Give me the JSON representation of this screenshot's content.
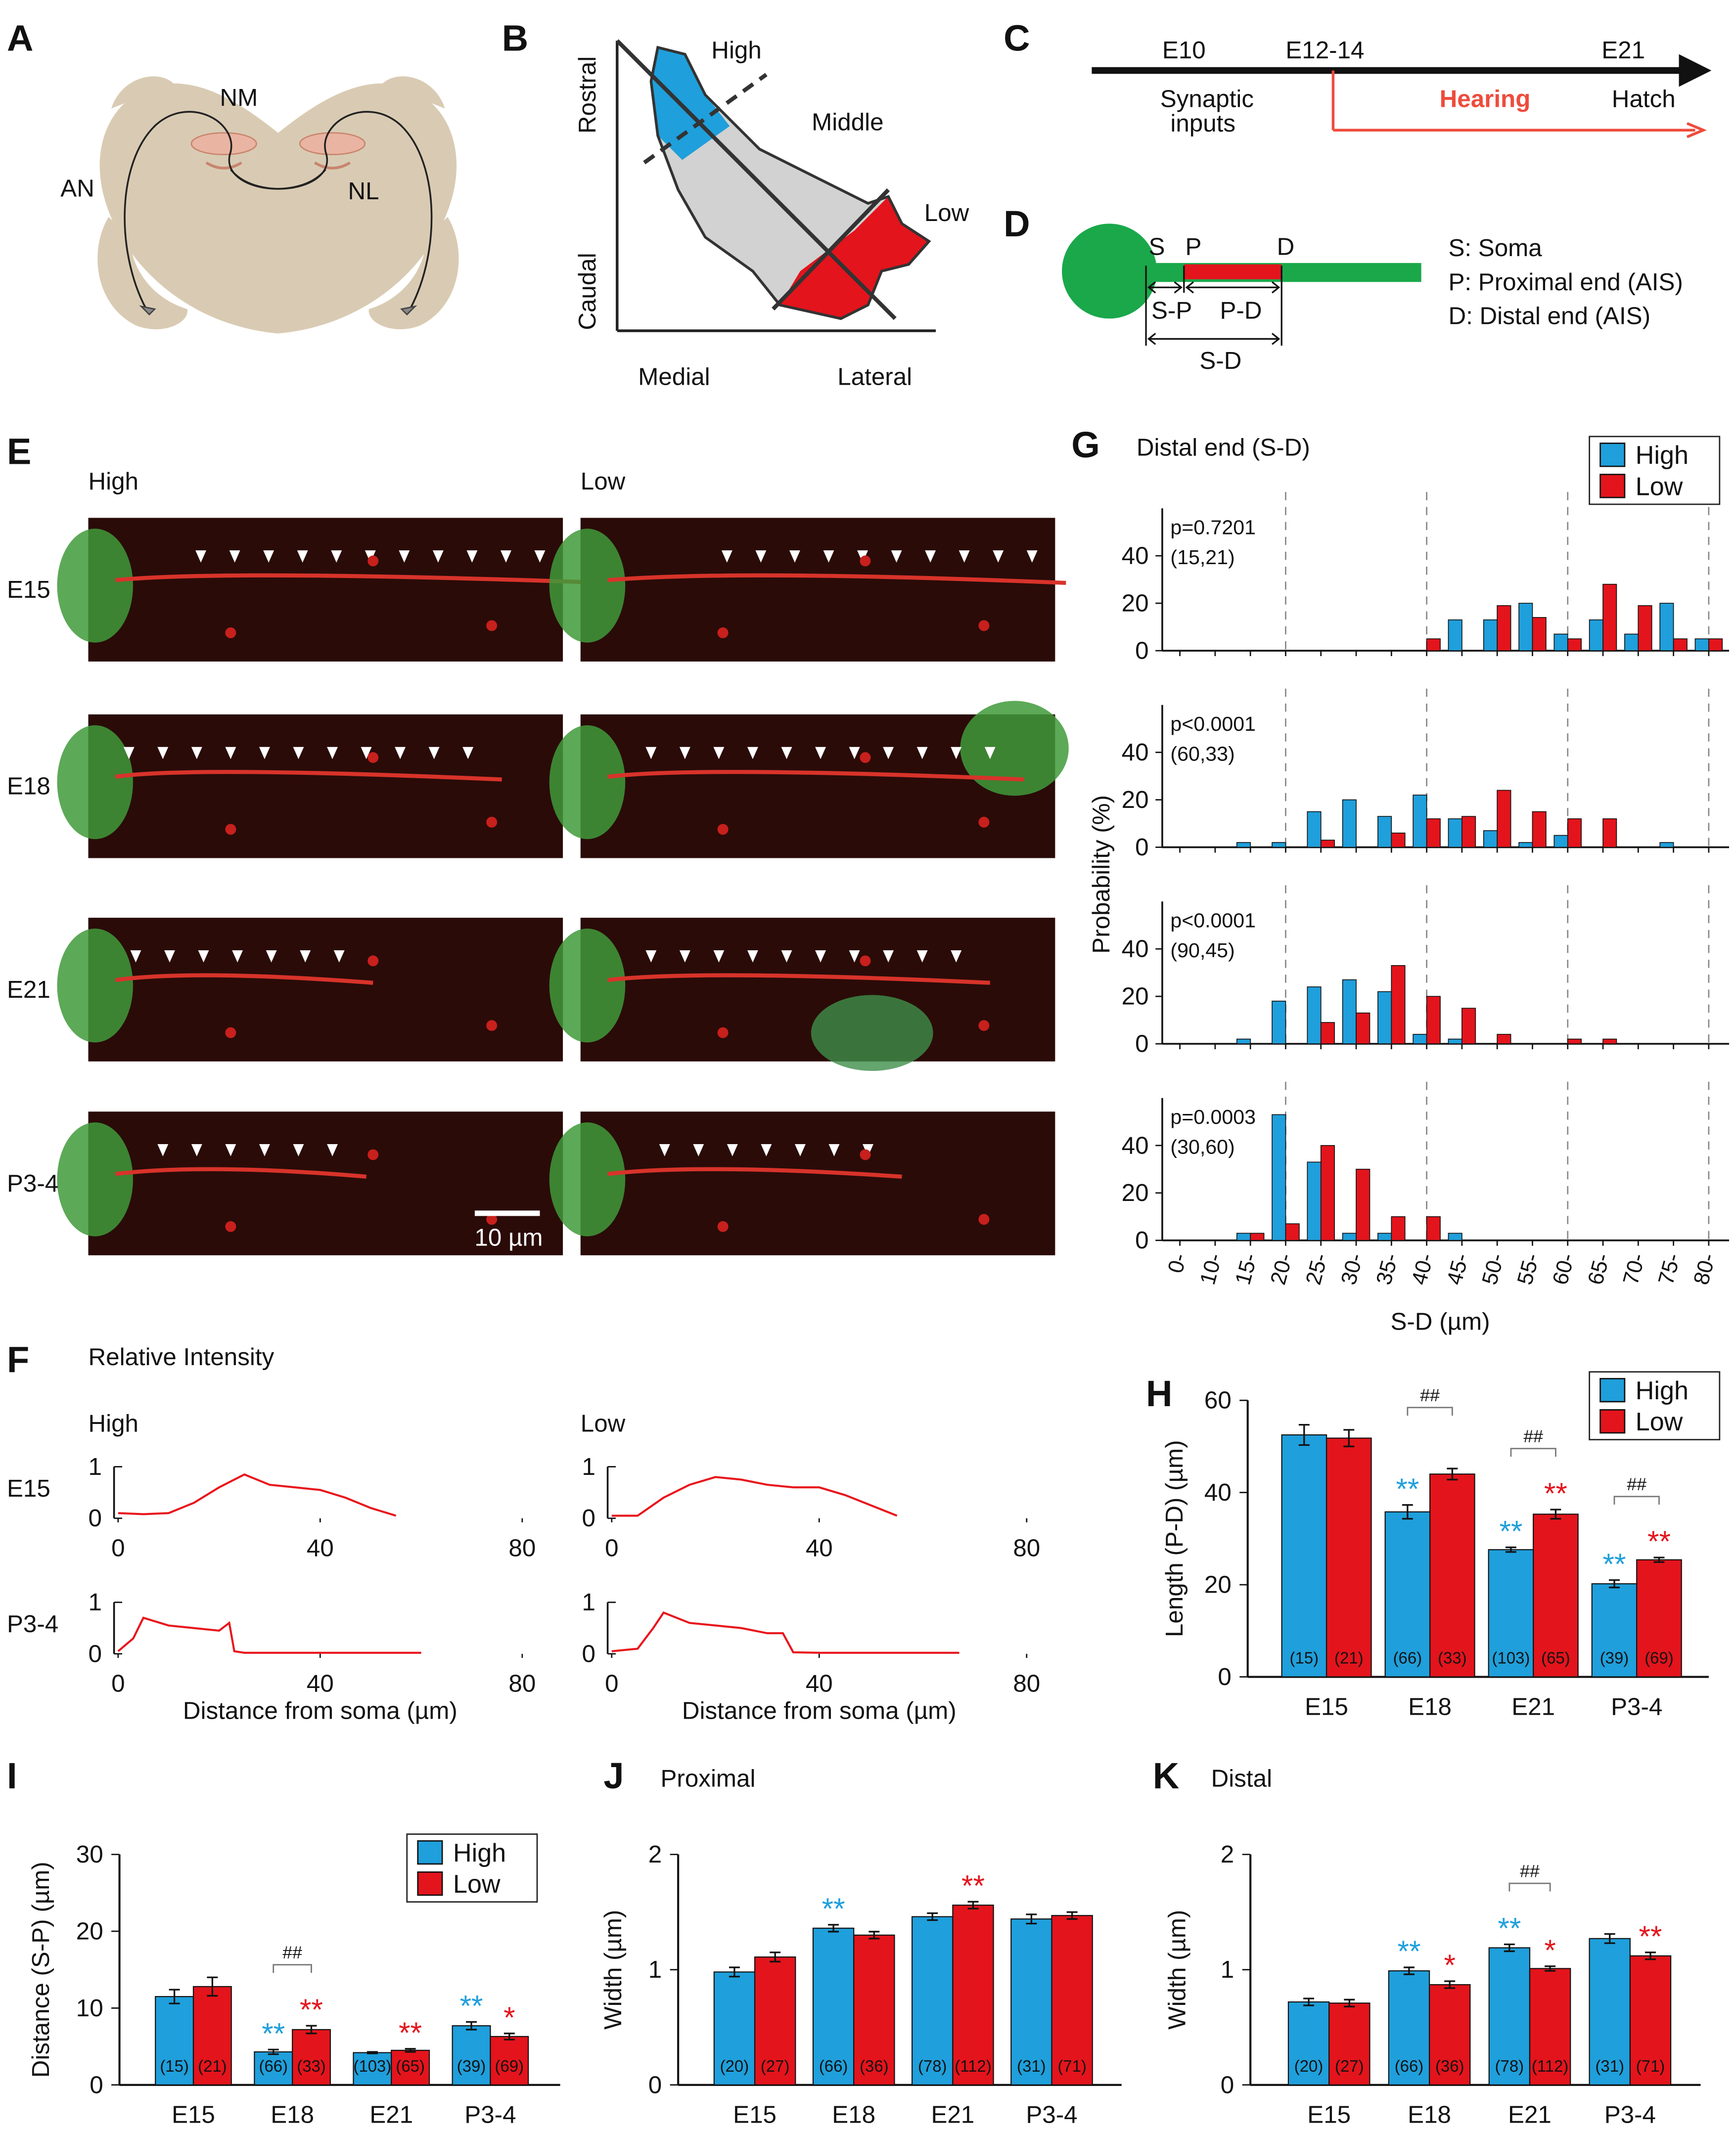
{
  "diagrams": {
    "circuit": {
      "panel": "A",
      "labels": [
        "NM",
        "AN",
        "NL"
      ]
    },
    "tonotopy": {
      "panel": "B",
      "regions": [
        "High",
        "Middle",
        "Low"
      ],
      "axes": [
        "Rostral",
        "Caudal",
        "Medial",
        "Lateral"
      ]
    },
    "timeline": {
      "panel": "C",
      "events": [
        "E10",
        "E12-14",
        "E21"
      ],
      "notes": [
        "Synaptic",
        "inputs",
        "Hatch"
      ],
      "period": "Hearing"
    },
    "ais": {
      "panel": "D",
      "points": [
        "S",
        "P",
        "D"
      ],
      "segments": [
        "S-P",
        "P-D",
        "S-D"
      ],
      "key": [
        "S: Soma",
        "P: Proximal end (AIS)",
        "D: Distal end (AIS)"
      ]
    },
    "micrographs": {
      "panel": "E",
      "columns": [
        "High",
        "Low"
      ],
      "rows": [
        "E15",
        "E18",
        "E21",
        "P3-4"
      ],
      "scale_bar": "10 µm"
    }
  },
  "chart_data": [
    {
      "panel": "F",
      "type": "line",
      "title": "Relative Intensity",
      "columns": [
        "High",
        "Low"
      ],
      "rows": [
        "E15",
        "P3-4"
      ],
      "xlabel": "Distance from soma (µm)",
      "color": "#e8151c",
      "xlim": [
        0,
        80
      ],
      "xticks": [
        0,
        40,
        80
      ],
      "ylim": [
        0,
        1
      ],
      "yticks": [
        0,
        1
      ],
      "panels": [
        {
          "x": [
            0,
            5,
            10,
            15,
            20,
            25,
            30,
            35,
            40,
            45,
            50,
            55
          ],
          "values": [
            0.1,
            0.08,
            0.1,
            0.3,
            0.6,
            0.85,
            0.65,
            0.6,
            0.55,
            0.4,
            0.2,
            0.05
          ]
        },
        {
          "x": [
            0,
            5,
            10,
            15,
            20,
            25,
            30,
            35,
            40,
            45,
            50,
            55
          ],
          "values": [
            0.05,
            0.05,
            0.4,
            0.65,
            0.8,
            0.75,
            0.65,
            0.6,
            0.6,
            0.45,
            0.25,
            0.05
          ]
        },
        {
          "x": [
            0,
            3,
            5,
            10,
            15,
            20,
            22,
            23,
            25,
            30,
            40,
            50,
            60
          ],
          "values": [
            0.05,
            0.3,
            0.7,
            0.55,
            0.5,
            0.45,
            0.6,
            0.05,
            0.02,
            0.02,
            0.02,
            0.02,
            0.02
          ]
        },
        {
          "x": [
            0,
            5,
            8,
            10,
            15,
            20,
            25,
            30,
            33,
            35,
            40,
            50,
            60,
            67
          ],
          "values": [
            0.05,
            0.1,
            0.5,
            0.8,
            0.6,
            0.55,
            0.5,
            0.4,
            0.4,
            0.03,
            0.02,
            0.02,
            0.02,
            0.02
          ]
        }
      ]
    },
    {
      "panel": "G",
      "type": "bar",
      "title": "Distal end (S-D)",
      "legend": "upper right",
      "series": [
        {
          "name": "High",
          "color": "#1f9fdb"
        },
        {
          "name": "Low",
          "color": "#e3141c"
        }
      ],
      "ylabel": "Probability (%)",
      "xlabel": "S-D (µm)",
      "categories": [
        "0-",
        "10-",
        "15-",
        "20-",
        "25-",
        "30-",
        "35-",
        "40-",
        "45-",
        "50-",
        "55-",
        "60-",
        "65-",
        "70-",
        "75-",
        "80-"
      ],
      "ylim": [
        0,
        60
      ],
      "yticks": [
        0,
        20,
        40
      ],
      "subplots": [
        {
          "annotation": [
            "p=0.7201",
            "(15,21)"
          ],
          "values": [
            [
              0,
              0,
              0,
              0,
              0,
              0,
              0,
              0,
              13,
              13,
              20,
              7,
              13,
              7,
              20,
              5
            ],
            [
              0,
              0,
              0,
              0,
              0,
              0,
              0,
              5,
              0,
              19,
              14,
              5,
              28,
              19,
              5,
              5
            ]
          ]
        },
        {
          "annotation": [
            "p<0.0001",
            "(60,33)"
          ],
          "values": [
            [
              0,
              0,
              2,
              2,
              15,
              20,
              13,
              22,
              12,
              7,
              2,
              5,
              0,
              0,
              2,
              0
            ],
            [
              0,
              0,
              0,
              0,
              3,
              0,
              6,
              12,
              13,
              24,
              15,
              12,
              12,
              0,
              0,
              0
            ]
          ]
        },
        {
          "annotation": [
            "p<0.0001",
            "(90,45)"
          ],
          "values": [
            [
              0,
              0,
              2,
              18,
              24,
              27,
              22,
              4,
              2,
              0,
              0,
              0,
              0,
              0,
              0,
              0
            ],
            [
              0,
              0,
              0,
              0,
              9,
              13,
              33,
              20,
              15,
              4,
              0,
              2,
              2,
              0,
              0,
              0
            ]
          ]
        },
        {
          "annotation": [
            "p=0.0003",
            "(30,60)"
          ],
          "values": [
            [
              0,
              0,
              3,
              53,
              33,
              3,
              3,
              0,
              3,
              0,
              0,
              0,
              0,
              0,
              0,
              0
            ],
            [
              0,
              0,
              3,
              7,
              40,
              30,
              10,
              10,
              0,
              0,
              0,
              0,
              0,
              0,
              0,
              0
            ]
          ]
        }
      ]
    },
    {
      "panel": "H",
      "type": "bar",
      "legend": "upper right",
      "ylabel": "Length (P-D) (µm)",
      "categories": [
        "E15",
        "E18",
        "E21",
        "P3-4"
      ],
      "ylim": [
        0,
        60
      ],
      "yticks": [
        0,
        20,
        40,
        60
      ],
      "comparisons": [
        null,
        "##",
        "##",
        "##"
      ],
      "series": [
        {
          "name": "High",
          "color": "#1f9fdb",
          "values": [
            52.5,
            35.8,
            27.6,
            20.2
          ],
          "errors": [
            2.2,
            1.5,
            0.5,
            0.8
          ],
          "n": [
            "(15)",
            "(66)",
            "(103)",
            "(39)"
          ],
          "significance": [
            null,
            "**",
            "**",
            "**"
          ]
        },
        {
          "name": "Low",
          "color": "#e3141c",
          "values": [
            51.8,
            44,
            35.3,
            25.4
          ],
          "errors": [
            1.8,
            1.2,
            1,
            0.5
          ],
          "n": [
            "(21)",
            "(33)",
            "(65)",
            "(69)"
          ],
          "significance": [
            null,
            null,
            "**",
            "**"
          ]
        }
      ]
    },
    {
      "panel": "I",
      "type": "bar",
      "legend": "upper right",
      "ylabel": "Distance (S-P) (µm)",
      "categories": [
        "E15",
        "E18",
        "E21",
        "P3-4"
      ],
      "ylim": [
        0,
        30
      ],
      "yticks": [
        0,
        10,
        20,
        30
      ],
      "comparisons": [
        null,
        "##",
        null,
        null
      ],
      "series": [
        {
          "name": "High",
          "color": "#1f9fdb",
          "values": [
            11.5,
            4.3,
            4.2,
            7.7
          ],
          "errors": [
            0.9,
            0.3,
            0.1,
            0.5
          ],
          "n": [
            "(15)",
            "(66)",
            "(103)",
            "(39)"
          ],
          "significance": [
            null,
            "**",
            null,
            "**"
          ]
        },
        {
          "name": "Low",
          "color": "#e3141c",
          "values": [
            12.8,
            7.2,
            4.5,
            6.3
          ],
          "errors": [
            1.2,
            0.5,
            0.2,
            0.4
          ],
          "n": [
            "(21)",
            "(33)",
            "(65)",
            "(69)"
          ],
          "significance": [
            null,
            "**",
            "**",
            "*"
          ]
        }
      ]
    },
    {
      "panel": "J",
      "type": "bar",
      "title": "Proximal",
      "ylabel": "Width (µm)",
      "categories": [
        "E15",
        "E18",
        "E21",
        "P3-4"
      ],
      "ylim": [
        0,
        2
      ],
      "yticks": [
        0,
        1,
        2
      ],
      "series": [
        {
          "color": "#1f9fdb",
          "values": [
            0.98,
            1.36,
            1.46,
            1.44
          ],
          "errors": [
            0.04,
            0.03,
            0.03,
            0.04
          ],
          "n": [
            "(20)",
            "(66)",
            "(78)",
            "(31)"
          ],
          "significance": [
            null,
            "**",
            null,
            null
          ]
        },
        {
          "color": "#e3141c",
          "values": [
            1.11,
            1.3,
            1.56,
            1.47
          ],
          "errors": [
            0.04,
            0.03,
            0.03,
            0.03
          ],
          "n": [
            "(27)",
            "(36)",
            "(112)",
            "(71)"
          ],
          "significance": [
            null,
            null,
            "**",
            null
          ]
        }
      ]
    },
    {
      "panel": "K",
      "type": "bar",
      "title": "Distal",
      "ylabel": "Width (µm)",
      "categories": [
        "E15",
        "E18",
        "E21",
        "P3-4"
      ],
      "ylim": [
        0,
        2
      ],
      "yticks": [
        0,
        1,
        2
      ],
      "comparisons": [
        null,
        null,
        "##",
        null
      ],
      "series": [
        {
          "color": "#1f9fdb",
          "values": [
            0.72,
            0.99,
            1.19,
            1.27
          ],
          "errors": [
            0.03,
            0.03,
            0.03,
            0.04
          ],
          "n": [
            "(20)",
            "(66)",
            "(78)",
            "(31)"
          ],
          "significance": [
            null,
            "**",
            "**",
            null
          ]
        },
        {
          "color": "#e3141c",
          "values": [
            0.71,
            0.87,
            1.01,
            1.12
          ],
          "errors": [
            0.03,
            0.03,
            0.02,
            0.03
          ],
          "n": [
            "(27)",
            "(36)",
            "(112)",
            "(71)"
          ],
          "significance": [
            null,
            "*",
            "*",
            "**"
          ]
        }
      ]
    }
  ]
}
